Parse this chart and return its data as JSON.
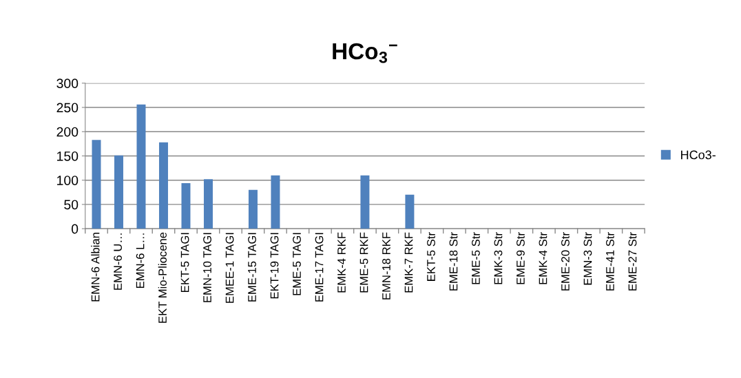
{
  "chart_data": {
    "type": "bar",
    "title": "HCo$_{3}$$^{−}$",
    "categories": [
      "EMN-6 Albian",
      "EMN-6 U…",
      "EMN-6 L…",
      "EKT Mio-Pliocene",
      "EKT-5 TAGI",
      "EMN-10 TAGI",
      "EMEE-1 TAGI",
      "EME-15 TAGI",
      "EKT-19 TAGI",
      "EME-5 TAGI",
      "EME-17 TAGI",
      "EMK-4 RKF",
      "EME-5 RKF",
      "EMN-18 RKF",
      "EMK-7 RKF",
      "EKT-5 Str",
      "EME-18 Str",
      "EME-5 Str",
      "EMK-3 Str",
      "EME-9 Str",
      "EMK-4 Str",
      "EME-20 Str",
      "EMN-3 Str",
      "EME-41 Str",
      "EME-27 Str"
    ],
    "series": [
      {
        "name": "HCo3-",
        "color": "#4f81bd",
        "values": [
          183,
          151,
          256,
          178,
          94,
          102,
          null,
          80,
          110,
          null,
          null,
          null,
          110,
          null,
          70,
          null,
          null,
          null,
          null,
          null,
          null,
          null,
          null,
          null,
          null
        ]
      }
    ],
    "ylim": [
      0,
      300
    ],
    "yticks": [
      0,
      50,
      100,
      150,
      200,
      250,
      300
    ],
    "grid": "y",
    "legend": "right"
  }
}
